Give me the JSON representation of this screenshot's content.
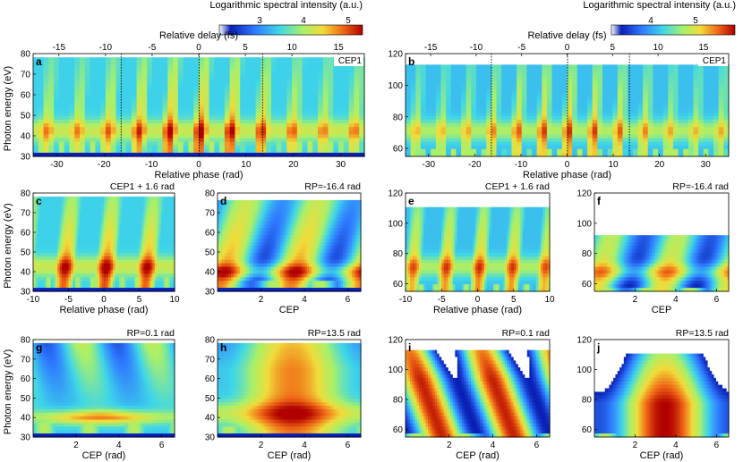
{
  "figure": {
    "description_free": true
  },
  "colorbars": [
    {
      "label": "Logarithmic spectral intensity (a.u.)",
      "ticks": [
        "3",
        "4",
        "5"
      ],
      "range": [
        2.2,
        5.3
      ]
    },
    {
      "label": "Logarithmic spectral intensity (a.u.)",
      "ticks": [
        "4",
        "5"
      ],
      "range": [
        3.2,
        5.8
      ]
    }
  ],
  "colors": {
    "low": "#0a1fb5",
    "mid": "#3fd6e8",
    "high": "#f0dc3a",
    "peak": "#c40000"
  },
  "chart_data": [
    {
      "type": "heatmap",
      "panel": "a",
      "tag": "CEP1",
      "xlabel": "Relative phase (rad)",
      "ylabel": "Photon energy (eV)",
      "xlabel_top": "Relative delay (fs)",
      "xlim": [
        -35,
        35
      ],
      "ylim": [
        30,
        80
      ],
      "xticks": [
        -30,
        -20,
        -10,
        0,
        10,
        20,
        30
      ],
      "xtick_labels": [
        "-30",
        "-20",
        "-10",
        "0",
        "10",
        "20",
        "30"
      ],
      "yticks": [
        30,
        40,
        50,
        60,
        70,
        80
      ],
      "ytick_labels": [
        "30",
        "40",
        "50",
        "60",
        "70",
        "80"
      ],
      "top_ticks_fs": [
        -15,
        -10,
        -5,
        0,
        5,
        10,
        15
      ],
      "top_tick_labels": [
        "-15",
        "-10",
        "-5",
        "0",
        "5",
        "10",
        "15"
      ],
      "rad_per_fs": 1.97,
      "dotted_lines_x": [
        -16.4,
        0.1,
        13.5
      ],
      "xticks_fs": null,
      "model": {
        "floor": [
          32,
          38
        ],
        "cut": 78,
        "seed": 1,
        "period": 6.5,
        "amp": 1.0
      }
    },
    {
      "type": "heatmap",
      "panel": "b",
      "tag": "CEP1",
      "xlabel": "Relative phase (rad)",
      "ylabel": "",
      "xlabel_top": "Relative delay (fs)",
      "xlim": [
        -35,
        35
      ],
      "ylim": [
        55,
        120
      ],
      "xticks": [
        -30,
        -20,
        -10,
        0,
        10,
        20,
        30
      ],
      "xtick_labels": [
        "-30",
        "-20",
        "-10",
        "0",
        "10",
        "20",
        "30"
      ],
      "yticks": [
        60,
        80,
        100,
        120
      ],
      "ytick_labels": [
        "60",
        "80",
        "100",
        "120"
      ],
      "top_ticks_fs": [
        -15,
        -10,
        -5,
        0,
        5,
        10,
        15
      ],
      "top_tick_labels": [
        "-15",
        "-10",
        "-5",
        "0",
        "5",
        "10",
        "15"
      ],
      "rad_per_fs": 1.97,
      "dotted_lines_x": [
        -16.4,
        0.1,
        13.5
      ],
      "model": {
        "floor": [
          56,
          60
        ],
        "cut": 112,
        "seed": 2,
        "period": 5.5,
        "amp": 0.9
      }
    },
    {
      "type": "heatmap",
      "panel": "c",
      "title": "CEP1 + 1.6 rad",
      "xlabel": "Relative phase (rad)",
      "ylabel": "Photon energy (eV)",
      "xlim": [
        -10,
        10
      ],
      "ylim": [
        30,
        80
      ],
      "xticks": [
        -10,
        -5,
        0,
        5,
        10
      ],
      "xtick_labels": [
        "-10",
        "-5",
        "0",
        "5",
        "10"
      ],
      "yticks": [
        30,
        40,
        50,
        60,
        70,
        80
      ],
      "ytick_labels": [
        "30",
        "40",
        "50",
        "60",
        "70",
        "80"
      ],
      "model": {
        "floor": [
          32,
          38
        ],
        "cut": 78,
        "seed": 3,
        "period": 5.8,
        "amp": 1.0
      }
    },
    {
      "type": "heatmap",
      "panel": "d",
      "title": "RP=-16.4 rad",
      "xlabel": "CEP",
      "ylabel": "",
      "xlim": [
        0,
        6.6
      ],
      "ylim": [
        30,
        80
      ],
      "xticks": [
        2,
        4,
        6
      ],
      "xtick_labels": [
        "2",
        "4",
        "6"
      ],
      "yticks": [
        30,
        40,
        50,
        60,
        70,
        80
      ],
      "ytick_labels": [
        "30",
        "40",
        "50",
        "60",
        "70",
        "80"
      ],
      "model": {
        "floor": [
          32,
          36
        ],
        "cut": 76,
        "seed": 4,
        "period": 3.3,
        "amp": 0.9,
        "cep": true
      }
    },
    {
      "type": "heatmap",
      "panel": "e",
      "title": "CEP1 + 1.6 rad",
      "xlabel": "Relative phase (rad)",
      "ylabel": "",
      "xlim": [
        -10,
        10
      ],
      "ylim": [
        55,
        120
      ],
      "xticks": [
        -10,
        -5,
        0,
        5,
        10
      ],
      "xtick_labels": [
        "-10",
        "-5",
        "0",
        "5",
        "10"
      ],
      "yticks": [
        60,
        80,
        100,
        120
      ],
      "ytick_labels": [
        "60",
        "80",
        "100",
        "120"
      ],
      "model": {
        "floor": [
          56,
          60
        ],
        "cut": 110,
        "seed": 5,
        "period": 4.6,
        "amp": 0.9
      }
    },
    {
      "type": "heatmap",
      "panel": "f",
      "title": "RP=-16.4 rad",
      "xlabel": "CEP",
      "ylabel": "",
      "xlim": [
        0,
        6.6
      ],
      "ylim": [
        55,
        120
      ],
      "xticks": [
        2,
        4,
        6
      ],
      "xtick_labels": [
        "2",
        "4",
        "6"
      ],
      "yticks": [
        60,
        80,
        100,
        120
      ],
      "ytick_labels": [
        "60",
        "80",
        "100",
        "120"
      ],
      "model": {
        "floor": [
          56,
          58
        ],
        "cut": 93,
        "seed": 6,
        "period": 3.3,
        "amp": 0.75,
        "cep": true
      }
    },
    {
      "type": "heatmap",
      "panel": "g",
      "title": "RP=0.1 rad",
      "xlabel": "CEP (rad)",
      "ylabel": "Photon energy (eV)",
      "xlim": [
        0,
        6.6
      ],
      "ylim": [
        30,
        80
      ],
      "xticks": [
        2,
        4,
        6
      ],
      "xtick_labels": [
        "2",
        "4",
        "6"
      ],
      "yticks": [
        30,
        40,
        50,
        60,
        70,
        80
      ],
      "ytick_labels": [
        "30",
        "40",
        "50",
        "60",
        "70",
        "80"
      ],
      "model": {
        "floor": [
          32,
          37
        ],
        "cut": 78,
        "seed": 7,
        "period": 3.3,
        "amp": 0.85,
        "cep": true,
        "band": 40
      }
    },
    {
      "type": "heatmap",
      "panel": "h",
      "title": "RP=13.5 rad",
      "xlabel": "CEP (rad)",
      "ylabel": "",
      "xlim": [
        0,
        6.6
      ],
      "ylim": [
        30,
        80
      ],
      "xticks": [
        2,
        4,
        6
      ],
      "xtick_labels": [
        "2",
        "4",
        "6"
      ],
      "yticks": [
        30,
        40,
        50,
        60,
        70,
        80
      ],
      "ytick_labels": [
        "30",
        "40",
        "50",
        "60",
        "70",
        "80"
      ],
      "model": {
        "floor": [
          32,
          35
        ],
        "cut": 78,
        "seed": 8,
        "period": 3.3,
        "amp": 0.95,
        "cep": true,
        "wide": true
      }
    },
    {
      "type": "heatmap",
      "panel": "i",
      "title": "RP=0.1 rad",
      "xlabel": "CEP (rad)",
      "ylabel": "",
      "xlim": [
        0,
        6.6
      ],
      "ylim": [
        55,
        120
      ],
      "xticks": [
        2,
        4,
        6
      ],
      "xtick_labels": [
        "2",
        "4",
        "6"
      ],
      "yticks": [
        60,
        80,
        100,
        120
      ],
      "ytick_labels": [
        "60",
        "80",
        "100",
        "120"
      ],
      "model": {
        "floor": [
          56,
          58
        ],
        "cut": 112,
        "seed": 9,
        "period": 3.3,
        "amp": 0.95,
        "cep": true,
        "diag": true
      }
    },
    {
      "type": "heatmap",
      "panel": "j",
      "title": "RP=13.5 rad",
      "xlabel": "CEP (rad)",
      "ylabel": "",
      "xlim": [
        0,
        6.6
      ],
      "ylim": [
        55,
        120
      ],
      "xticks": [
        2,
        4,
        6
      ],
      "xtick_labels": [
        "2",
        "4",
        "6"
      ],
      "yticks": [
        60,
        80,
        100,
        120
      ],
      "ytick_labels": [
        "60",
        "80",
        "100",
        "120"
      ],
      "model": {
        "floor": [
          56,
          58
        ],
        "cut": 110,
        "seed": 10,
        "period": 3.3,
        "amp": 1.0,
        "cep": true,
        "blob": true
      }
    }
  ]
}
